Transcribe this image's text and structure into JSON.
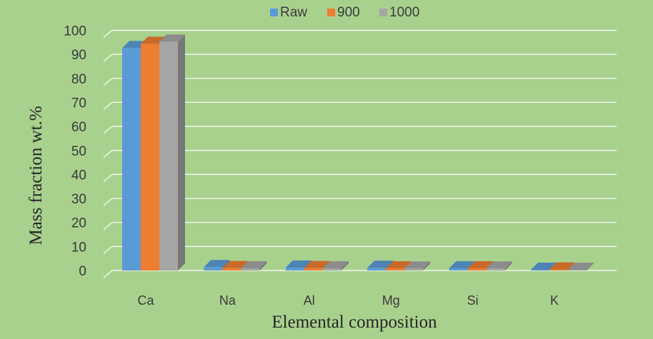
{
  "colors": {
    "background": "#a9d18e",
    "grid": "#ffffff",
    "series": [
      "#5b9bd5",
      "#ed7d31",
      "#a5a5a5"
    ]
  },
  "chart_data": {
    "type": "bar",
    "categories": [
      "Ca",
      "Na",
      "Al",
      "Mg",
      "Si",
      "K"
    ],
    "series": [
      {
        "name": "Raw",
        "values": [
          92.6,
          1.4,
          1.2,
          1.1,
          0.9,
          0.3
        ]
      },
      {
        "name": "900",
        "values": [
          94.4,
          1.0,
          1.0,
          0.9,
          0.9,
          0.4
        ]
      },
      {
        "name": "1000",
        "values": [
          95.3,
          0.9,
          0.9,
          0.8,
          0.8,
          0.3
        ]
      }
    ],
    "title": "",
    "xlabel": "Elemental composition",
    "ylabel": "Mass fraction wt.%",
    "ylim": [
      0,
      100
    ],
    "yticks": [
      "0",
      "10",
      "20",
      "30",
      "40",
      "50",
      "60",
      "70",
      "80",
      "90",
      "100"
    ],
    "grid": true,
    "legend_position": "top",
    "style": "3d-clustered-column"
  }
}
